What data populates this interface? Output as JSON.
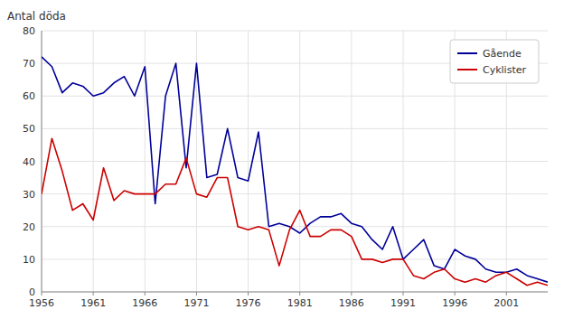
{
  "chart_data": {
    "type": "line",
    "ylabel": "Antal döda",
    "x": [
      1956,
      1957,
      1958,
      1959,
      1960,
      1961,
      1962,
      1963,
      1964,
      1965,
      1966,
      1967,
      1968,
      1969,
      1970,
      1971,
      1972,
      1973,
      1974,
      1975,
      1976,
      1977,
      1978,
      1979,
      1980,
      1981,
      1982,
      1983,
      1984,
      1985,
      1986,
      1987,
      1988,
      1989,
      1990,
      1991,
      1992,
      1993,
      1994,
      1995,
      1996,
      1997,
      1998,
      1999,
      2000,
      2001,
      2002,
      2003,
      2004,
      2005
    ],
    "series": [
      {
        "name": "Gående",
        "color": "#000099",
        "values": [
          72,
          69,
          61,
          64,
          63,
          60,
          61,
          64,
          66,
          60,
          69,
          27,
          60,
          70,
          38,
          70,
          35,
          36,
          50,
          35,
          34,
          49,
          20,
          21,
          20,
          18,
          21,
          23,
          23,
          24,
          21,
          20,
          16,
          13,
          20,
          10,
          13,
          16,
          8,
          7,
          13,
          11,
          10,
          7,
          6,
          6,
          7,
          5,
          4,
          3
        ]
      },
      {
        "name": "Cyklister",
        "color": "#CC0000",
        "values": [
          30,
          47,
          37,
          25,
          27,
          22,
          38,
          28,
          31,
          30,
          30,
          30,
          33,
          33,
          41,
          30,
          29,
          35,
          35,
          20,
          19,
          20,
          19,
          8,
          19,
          25,
          17,
          17,
          19,
          19,
          17,
          10,
          10,
          9,
          10,
          10,
          5,
          4,
          6,
          7,
          4,
          3,
          4,
          3,
          5,
          6,
          4,
          2,
          3,
          2
        ]
      }
    ],
    "xlim": [
      1956,
      2005
    ],
    "xticks": [
      1956,
      1961,
      1966,
      1971,
      1976,
      1981,
      1986,
      1991,
      1996,
      2001
    ],
    "ylim": [
      0,
      80
    ],
    "yticks": [
      0,
      10,
      20,
      30,
      40,
      50,
      60,
      70,
      80
    ],
    "grid": true,
    "legend": "upper right"
  }
}
